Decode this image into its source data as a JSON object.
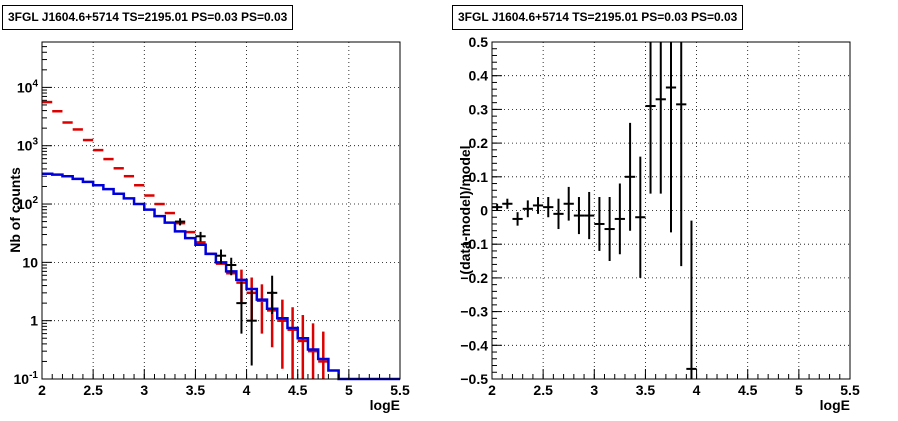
{
  "chart_data": [
    {
      "type": "line",
      "title": "3FGL J1604.6+5714 TS=2195.01 PS=0.03 PS=0.03",
      "xlabel": "logE",
      "ylabel": "Nb of counts",
      "xlim": [
        2,
        5.5
      ],
      "ylim": [
        0.1,
        60000
      ],
      "yscale": "log",
      "grid": true,
      "x_ticks": [
        "2",
        "2.5",
        "3",
        "3.5",
        "4",
        "4.5",
        "5",
        "5.5"
      ],
      "y_ticks": [
        "10^-1",
        "1",
        "10",
        "10^2",
        "10^3",
        "10^4"
      ],
      "bin_edges": [
        2.0,
        2.1,
        2.2,
        2.3,
        2.4,
        2.5,
        2.6,
        2.7,
        2.8,
        2.9,
        3.0,
        3.1,
        3.2,
        3.3,
        3.4,
        3.5,
        3.6,
        3.7,
        3.8,
        3.9,
        4.0,
        4.1,
        4.2,
        4.3,
        4.4,
        4.5,
        4.6,
        4.7,
        4.8,
        4.9,
        5.0,
        5.1,
        5.2,
        5.3,
        5.4,
        5.5
      ],
      "series": [
        {
          "color": "#dd0000",
          "style": "markers",
          "x": [
            2.05,
            2.15,
            2.25,
            2.35,
            2.45,
            2.55,
            2.65,
            2.75,
            2.85,
            2.95,
            3.05,
            3.15,
            3.25,
            3.35,
            3.45,
            3.55,
            3.65,
            3.75,
            3.85,
            3.95,
            4.05,
            4.15,
            4.25,
            4.35,
            4.45,
            4.55,
            4.65,
            4.75
          ],
          "values": [
            5600,
            3900,
            2500,
            1900,
            1250,
            840,
            590,
            410,
            300,
            210,
            140,
            100,
            70,
            47,
            33,
            22,
            14,
            9.5,
            6.5,
            4.5,
            3.0,
            2.2,
            1.5,
            1.0,
            0.7,
            0.45,
            0.3,
            0.2
          ],
          "err_low": [
            0,
            0,
            0,
            0,
            0,
            0,
            0,
            0,
            0,
            0,
            0,
            0,
            0,
            0,
            0,
            0,
            0,
            0,
            0,
            2.5,
            2.0,
            1.6,
            1.15,
            0.85,
            0.6,
            0.4,
            0.28,
            0.19
          ],
          "err_high": [
            0,
            0,
            0,
            0,
            0,
            0,
            0,
            0,
            0,
            0,
            0,
            0,
            0,
            0,
            0,
            0,
            0,
            0,
            0,
            3.0,
            2.5,
            2.0,
            1.7,
            1.3,
            1.0,
            0.8,
            0.6,
            0.45
          ]
        },
        {
          "color": "#000000",
          "style": "points",
          "x": [
            3.35,
            3.55,
            3.75,
            3.85,
            3.95,
            4.05,
            4.25
          ],
          "values": [
            50,
            28,
            13,
            9,
            2,
            1,
            3
          ],
          "err_low": [
            7,
            5.3,
            3.6,
            3.0,
            1.4,
            0.83,
            1.7
          ],
          "err_high": [
            7,
            5.3,
            3.6,
            3.0,
            2.6,
            2.3,
            2.9
          ]
        },
        {
          "color": "#0000dd",
          "style": "step",
          "values": [
            330,
            320,
            300,
            270,
            240,
            210,
            180,
            150,
            125,
            100,
            80,
            62,
            48,
            34,
            26,
            20,
            14,
            10,
            7,
            5,
            3.5,
            2.3,
            1.6,
            1.1,
            0.75,
            0.5,
            0.32,
            0.22,
            0.14,
            0.1,
            0.1,
            0.1,
            0.1,
            0.1,
            0.1
          ]
        }
      ]
    },
    {
      "type": "scatter",
      "title": "3FGL J1604.6+5714 TS=2195.01 PS=0.03 PS=0.03",
      "xlabel": "logE",
      "ylabel": "(data-model)/model",
      "xlim": [
        2,
        5.5
      ],
      "ylim": [
        -0.5,
        0.5
      ],
      "grid": true,
      "x_ticks": [
        "2",
        "2.5",
        "3",
        "3.5",
        "4",
        "4.5",
        "5",
        "5.5"
      ],
      "y_ticks": [
        "−0.5",
        "−0.4",
        "−0.3",
        "−0.2",
        "−0.1",
        "0",
        "0.1",
        "0.2",
        "0.3",
        "0.4",
        "0.5"
      ],
      "series": [
        {
          "color": "#000000",
          "x": [
            2.05,
            2.15,
            2.25,
            2.35,
            2.45,
            2.55,
            2.65,
            2.75,
            2.85,
            2.95,
            3.05,
            3.15,
            3.25,
            3.35,
            3.45,
            3.55,
            3.65,
            3.75,
            3.85,
            3.95
          ],
          "values": [
            0.01,
            0.02,
            -0.025,
            0.005,
            0.015,
            0.01,
            -0.01,
            0.02,
            -0.015,
            -0.015,
            -0.04,
            -0.055,
            -0.025,
            0.1,
            -0.02,
            0.31,
            0.33,
            0.365,
            0.315,
            -0.47
          ],
          "err": [
            0.01,
            0.015,
            0.02,
            0.025,
            0.025,
            0.03,
            0.045,
            0.05,
            0.055,
            0.07,
            0.08,
            0.095,
            0.105,
            0.16,
            0.18,
            0.26,
            0.28,
            0.43,
            0.48,
            0.44
          ]
        }
      ]
    }
  ]
}
